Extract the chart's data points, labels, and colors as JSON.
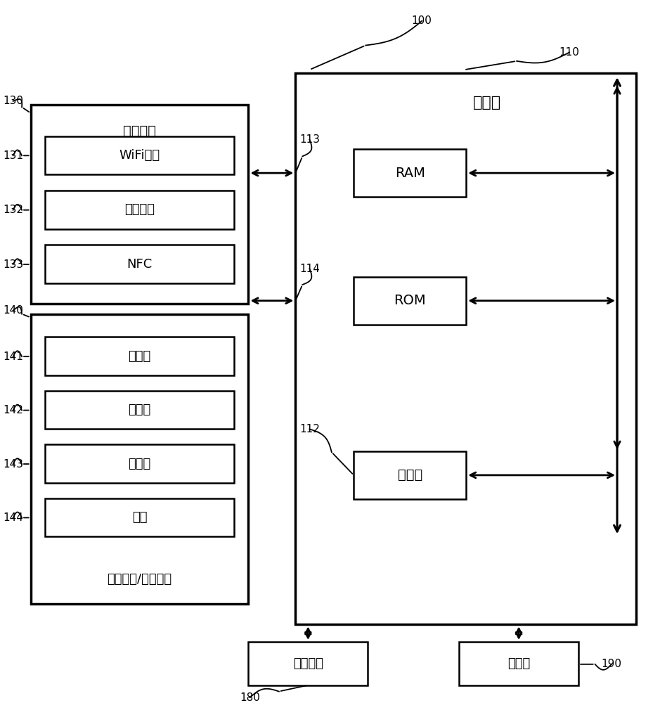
{
  "bg_color": "#ffffff",
  "line_color": "#000000",
  "texts": {
    "controller": "控制器",
    "comm_if": "通信接口",
    "wifi": "WiFi芯片",
    "bt": "蓝牙模块",
    "nfc": "NFC",
    "user_if": "用户输入/输出接口",
    "mic": "麦克风",
    "camera": "摄像头",
    "sensor": "传感器",
    "button": "按键",
    "ram": "RAM",
    "rom": "ROM",
    "processor": "处理器",
    "power": "供电电源",
    "storage": "存储器"
  },
  "ref_numbers": [
    "100",
    "110",
    "112",
    "113",
    "114",
    "130",
    "131",
    "132",
    "133",
    "140",
    "141",
    "142",
    "143",
    "144",
    "180",
    "190"
  ]
}
